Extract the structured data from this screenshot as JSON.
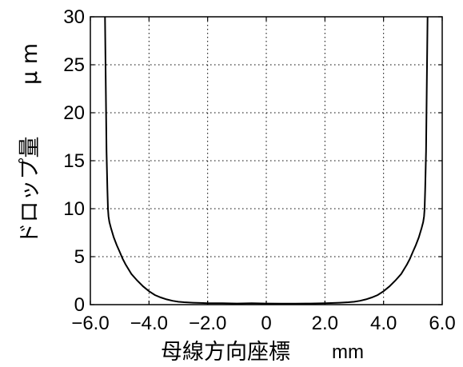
{
  "chart_data": {
    "type": "line",
    "title": "",
    "xlabel": "母線方向座標",
    "xunit": "mm",
    "ylabel": "ドロップ量",
    "yunit": "μ m",
    "xlim": [
      -6.0,
      6.0
    ],
    "ylim": [
      0,
      30
    ],
    "xticks": [
      -6.0,
      -4.0,
      -2.0,
      0,
      2.0,
      4.0,
      6.0
    ],
    "xtick_labels": [
      "−6.0",
      "−4.0",
      "−2.0",
      "0",
      "2.0",
      "4.0",
      "6.0"
    ],
    "yticks": [
      0,
      5,
      10,
      15,
      20,
      25,
      30
    ],
    "ytick_labels": [
      "0",
      "5",
      "10",
      "15",
      "20",
      "25",
      "30"
    ],
    "grid": true,
    "series": [
      {
        "x": [
          -5.5,
          -5.47,
          -5.45,
          -5.42,
          -5.4,
          -5.38,
          -5.35,
          -5.3,
          -5.2,
          -5.1,
          -5.0,
          -4.9,
          -4.8,
          -4.6,
          -4.4,
          -4.2,
          -4.0,
          -3.8,
          -3.6,
          -3.4,
          -3.2,
          -3.0,
          -2.8,
          -2.5,
          -2.0,
          -1.5,
          -1.0,
          -0.5,
          0,
          0.5,
          1.0,
          1.5,
          2.0,
          2.5,
          2.8,
          3.0,
          3.2,
          3.4,
          3.6,
          3.8,
          4.0,
          4.2,
          4.4,
          4.6,
          4.8,
          4.9,
          5.0,
          5.1,
          5.2,
          5.3,
          5.35,
          5.38,
          5.4,
          5.42,
          5.45,
          5.47,
          5.5
        ],
        "y": [
          30,
          22,
          16,
          12,
          10,
          9.2,
          8.6,
          8.0,
          7.0,
          6.2,
          5.5,
          4.8,
          4.2,
          3.2,
          2.5,
          1.9,
          1.4,
          1.0,
          0.75,
          0.55,
          0.4,
          0.3,
          0.25,
          0.2,
          0.15,
          0.15,
          0.12,
          0.15,
          0.12,
          0.1,
          0.1,
          0.12,
          0.15,
          0.2,
          0.25,
          0.3,
          0.4,
          0.55,
          0.75,
          1.0,
          1.4,
          1.9,
          2.5,
          3.2,
          4.2,
          4.8,
          5.5,
          6.2,
          7.0,
          8.0,
          8.6,
          9.2,
          10,
          12,
          16,
          22,
          30
        ]
      }
    ]
  }
}
